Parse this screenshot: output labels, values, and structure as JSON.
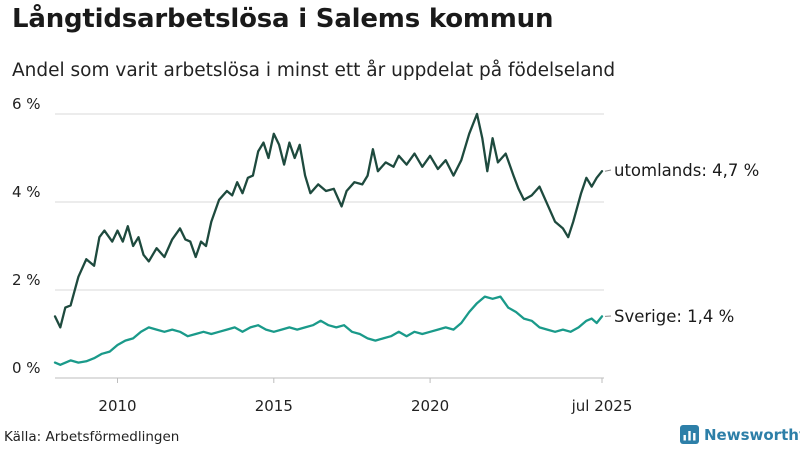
{
  "header": {
    "title": "Långtidsarbetslösa i Salems kommun",
    "subtitle": "Andel som varit arbetslösa i minst ett år uppdelat på födelseland"
  },
  "footer": {
    "source": "Källa: Arbetsförmedlingen",
    "brand": "Newsworthy",
    "brand_icon": "newsworthy-logo-icon",
    "brand_color": "#2d7fa8"
  },
  "chart_data": {
    "type": "line",
    "x_start": "2008-01",
    "x_end": "2025-07",
    "ylim": [
      0,
      6
    ],
    "y_ticks": [
      0,
      2,
      4,
      6
    ],
    "y_tick_labels": [
      "0 %",
      "2 %",
      "4 %",
      "6 %"
    ],
    "x_ticks": [
      2010,
      2015,
      2020,
      2025.5
    ],
    "x_tick_labels": [
      "2010",
      "2015",
      "2020",
      "jul 2025"
    ],
    "grid": "horizontal",
    "series": [
      {
        "name": "utomlands",
        "end_label": "utomlands: 4,7 %",
        "color": "#1e4a3e",
        "points": [
          [
            2008.0,
            1.4
          ],
          [
            2008.17,
            1.15
          ],
          [
            2008.33,
            1.6
          ],
          [
            2008.5,
            1.65
          ],
          [
            2008.75,
            2.3
          ],
          [
            2009.0,
            2.7
          ],
          [
            2009.25,
            2.55
          ],
          [
            2009.42,
            3.2
          ],
          [
            2009.58,
            3.35
          ],
          [
            2009.83,
            3.1
          ],
          [
            2010.0,
            3.35
          ],
          [
            2010.17,
            3.1
          ],
          [
            2010.33,
            3.45
          ],
          [
            2010.5,
            3.0
          ],
          [
            2010.67,
            3.2
          ],
          [
            2010.83,
            2.8
          ],
          [
            2011.0,
            2.65
          ],
          [
            2011.25,
            2.95
          ],
          [
            2011.5,
            2.75
          ],
          [
            2011.75,
            3.15
          ],
          [
            2012.0,
            3.4
          ],
          [
            2012.17,
            3.15
          ],
          [
            2012.33,
            3.1
          ],
          [
            2012.5,
            2.75
          ],
          [
            2012.67,
            3.1
          ],
          [
            2012.83,
            3.0
          ],
          [
            2013.0,
            3.55
          ],
          [
            2013.25,
            4.05
          ],
          [
            2013.5,
            4.25
          ],
          [
            2013.67,
            4.15
          ],
          [
            2013.83,
            4.45
          ],
          [
            2014.0,
            4.2
          ],
          [
            2014.17,
            4.55
          ],
          [
            2014.33,
            4.6
          ],
          [
            2014.5,
            5.15
          ],
          [
            2014.67,
            5.35
          ],
          [
            2014.83,
            5.0
          ],
          [
            2015.0,
            5.55
          ],
          [
            2015.17,
            5.3
          ],
          [
            2015.33,
            4.85
          ],
          [
            2015.5,
            5.35
          ],
          [
            2015.67,
            5.0
          ],
          [
            2015.83,
            5.3
          ],
          [
            2016.0,
            4.6
          ],
          [
            2016.17,
            4.2
          ],
          [
            2016.42,
            4.4
          ],
          [
            2016.67,
            4.25
          ],
          [
            2016.92,
            4.3
          ],
          [
            2017.17,
            3.9
          ],
          [
            2017.33,
            4.25
          ],
          [
            2017.58,
            4.45
          ],
          [
            2017.83,
            4.4
          ],
          [
            2018.0,
            4.6
          ],
          [
            2018.17,
            5.2
          ],
          [
            2018.33,
            4.7
          ],
          [
            2018.58,
            4.9
          ],
          [
            2018.83,
            4.8
          ],
          [
            2019.0,
            5.05
          ],
          [
            2019.25,
            4.85
          ],
          [
            2019.5,
            5.1
          ],
          [
            2019.75,
            4.8
          ],
          [
            2020.0,
            5.05
          ],
          [
            2020.25,
            4.75
          ],
          [
            2020.5,
            4.95
          ],
          [
            2020.75,
            4.6
          ],
          [
            2021.0,
            4.95
          ],
          [
            2021.25,
            5.55
          ],
          [
            2021.5,
            6.0
          ],
          [
            2021.67,
            5.45
          ],
          [
            2021.83,
            4.7
          ],
          [
            2022.0,
            5.45
          ],
          [
            2022.17,
            4.9
          ],
          [
            2022.42,
            5.1
          ],
          [
            2022.67,
            4.6
          ],
          [
            2022.83,
            4.3
          ],
          [
            2023.0,
            4.05
          ],
          [
            2023.25,
            4.15
          ],
          [
            2023.5,
            4.35
          ],
          [
            2023.75,
            3.95
          ],
          [
            2024.0,
            3.55
          ],
          [
            2024.25,
            3.4
          ],
          [
            2024.42,
            3.2
          ],
          [
            2024.58,
            3.55
          ],
          [
            2024.83,
            4.2
          ],
          [
            2025.0,
            4.55
          ],
          [
            2025.17,
            4.35
          ],
          [
            2025.33,
            4.55
          ],
          [
            2025.5,
            4.7
          ]
        ]
      },
      {
        "name": "Sverige",
        "end_label": "Sverige: 1,4 %",
        "color": "#1a9a8a",
        "points": [
          [
            2008.0,
            0.35
          ],
          [
            2008.17,
            0.3
          ],
          [
            2008.5,
            0.4
          ],
          [
            2008.75,
            0.35
          ],
          [
            2009.0,
            0.38
          ],
          [
            2009.25,
            0.45
          ],
          [
            2009.5,
            0.55
          ],
          [
            2009.75,
            0.6
          ],
          [
            2010.0,
            0.75
          ],
          [
            2010.25,
            0.85
          ],
          [
            2010.5,
            0.9
          ],
          [
            2010.75,
            1.05
          ],
          [
            2011.0,
            1.15
          ],
          [
            2011.25,
            1.1
          ],
          [
            2011.5,
            1.05
          ],
          [
            2011.75,
            1.1
          ],
          [
            2012.0,
            1.05
          ],
          [
            2012.25,
            0.95
          ],
          [
            2012.5,
            1.0
          ],
          [
            2012.75,
            1.05
          ],
          [
            2013.0,
            1.0
          ],
          [
            2013.25,
            1.05
          ],
          [
            2013.5,
            1.1
          ],
          [
            2013.75,
            1.15
          ],
          [
            2014.0,
            1.05
          ],
          [
            2014.25,
            1.15
          ],
          [
            2014.5,
            1.2
          ],
          [
            2014.75,
            1.1
          ],
          [
            2015.0,
            1.05
          ],
          [
            2015.25,
            1.1
          ],
          [
            2015.5,
            1.15
          ],
          [
            2015.75,
            1.1
          ],
          [
            2016.0,
            1.15
          ],
          [
            2016.25,
            1.2
          ],
          [
            2016.5,
            1.3
          ],
          [
            2016.75,
            1.2
          ],
          [
            2017.0,
            1.15
          ],
          [
            2017.25,
            1.2
          ],
          [
            2017.5,
            1.05
          ],
          [
            2017.75,
            1.0
          ],
          [
            2018.0,
            0.9
          ],
          [
            2018.25,
            0.85
          ],
          [
            2018.5,
            0.9
          ],
          [
            2018.75,
            0.95
          ],
          [
            2019.0,
            1.05
          ],
          [
            2019.25,
            0.95
          ],
          [
            2019.5,
            1.05
          ],
          [
            2019.75,
            1.0
          ],
          [
            2020.0,
            1.05
          ],
          [
            2020.25,
            1.1
          ],
          [
            2020.5,
            1.15
          ],
          [
            2020.75,
            1.1
          ],
          [
            2021.0,
            1.25
          ],
          [
            2021.25,
            1.5
          ],
          [
            2021.5,
            1.7
          ],
          [
            2021.75,
            1.85
          ],
          [
            2022.0,
            1.8
          ],
          [
            2022.25,
            1.85
          ],
          [
            2022.5,
            1.6
          ],
          [
            2022.75,
            1.5
          ],
          [
            2023.0,
            1.35
          ],
          [
            2023.25,
            1.3
          ],
          [
            2023.5,
            1.15
          ],
          [
            2023.75,
            1.1
          ],
          [
            2024.0,
            1.05
          ],
          [
            2024.25,
            1.1
          ],
          [
            2024.5,
            1.05
          ],
          [
            2024.75,
            1.15
          ],
          [
            2025.0,
            1.3
          ],
          [
            2025.17,
            1.35
          ],
          [
            2025.33,
            1.25
          ],
          [
            2025.5,
            1.4
          ]
        ]
      }
    ]
  }
}
